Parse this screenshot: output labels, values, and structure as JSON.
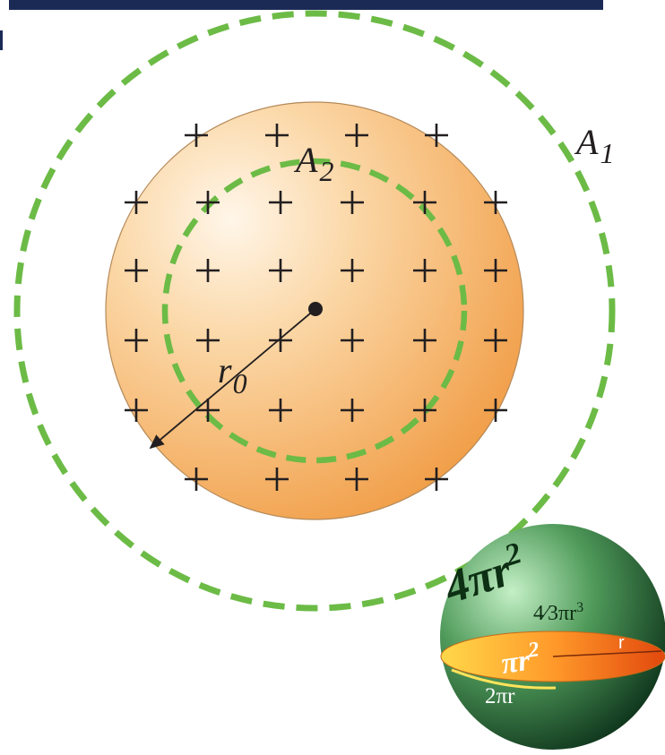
{
  "labels": {
    "outer_surface": {
      "name": "A",
      "sub": "1"
    },
    "inner_surface": {
      "name": "A",
      "sub": "2"
    },
    "radius": {
      "name": "r",
      "sub": "0"
    },
    "charge_symbol": "+"
  },
  "sphere_icon": {
    "surface_area_formula": "4πr",
    "surface_area_exp": "2",
    "volume_formula_frac": "4⁄3",
    "volume_formula_rest": "πr",
    "volume_formula_exp": "3",
    "cross_section_formula": "πr",
    "cross_section_exp": "2",
    "circumference_formula": "2πr",
    "radius_label": "r"
  },
  "colors": {
    "header_bar": "#1b2a55",
    "sphere_fill_light": "#fde6c4",
    "sphere_fill_dark": "#f2a14e",
    "dashed_surface": "#6cbb46",
    "charge": "#231f20",
    "icon_green_light": "#8fd39a",
    "icon_green_dark": "#0e4322",
    "icon_disc_light": "#ffe35a",
    "icon_disc_dark": "#e65a12"
  }
}
